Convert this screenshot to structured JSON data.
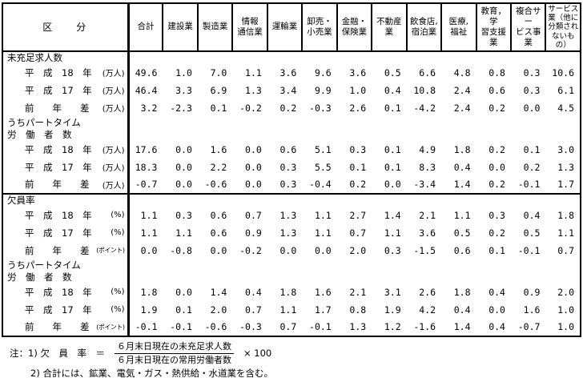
{
  "table": {
    "corner_label": "区　　分",
    "columns": [
      "合計",
      "建設業",
      "製造業",
      "情報\n通信業",
      "運輸業",
      "卸売・\n小売業",
      "金融・\n保険業",
      "不動産業",
      "飲食店,\n宿泊業",
      "医療,\n福祉",
      "教育，学\n習支援業",
      "複合サー\nビス事業",
      "サービス\n業（他に\n分類され\nないも\nの）"
    ],
    "sections": [
      {
        "title": "未充足求人数",
        "divider_above": false,
        "rows": [
          {
            "label": "平　成　18　年",
            "unit": "(万人)",
            "values": [
              "49.6",
              "1.0",
              "7.0",
              "1.1",
              "3.6",
              "9.6",
              "3.6",
              "0.5",
              "6.6",
              "4.8",
              "0.8",
              "0.3",
              "10.6"
            ]
          },
          {
            "label": "平　成　17　年",
            "unit": "(万人)",
            "values": [
              "46.4",
              "3.3",
              "6.9",
              "1.3",
              "3.4",
              "9.9",
              "1.0",
              "0.4",
              "10.8",
              "2.4",
              "0.6",
              "0.3",
              "6.1"
            ]
          },
          {
            "label": "前　　年　　差",
            "unit": "(万人)",
            "values": [
              "3.2",
              "-2.3",
              "0.1",
              "-0.2",
              "0.2",
              "-0.3",
              "2.6",
              "0.1",
              "-4.2",
              "2.4",
              "0.2",
              "0.0",
              "4.5"
            ]
          }
        ]
      },
      {
        "title": "うちパートタイム\n労　働　者　数",
        "divider_above": false,
        "rows": [
          {
            "label": "平　成　18　年",
            "unit": "(万人)",
            "values": [
              "17.6",
              "0.0",
              "1.6",
              "0.0",
              "0.6",
              "5.1",
              "0.3",
              "0.1",
              "4.9",
              "1.8",
              "0.2",
              "0.1",
              "3.0"
            ]
          },
          {
            "label": "平　成　17　年",
            "unit": "(万人)",
            "values": [
              "18.3",
              "0.0",
              "2.2",
              "0.0",
              "0.3",
              "5.5",
              "0.1",
              "0.1",
              "8.3",
              "0.4",
              "0.0",
              "0.2",
              "1.3"
            ]
          },
          {
            "label": "前　　年　　差",
            "unit": "(万人)",
            "values": [
              "-0.7",
              "0.0",
              "-0.6",
              "0.0",
              "0.3",
              "-0.4",
              "0.2",
              "0.0",
              "-3.4",
              "1.4",
              "0.2",
              "-0.1",
              "1.7"
            ]
          }
        ]
      },
      {
        "title": "欠員率",
        "divider_above": true,
        "rows": [
          {
            "label": "平　成　18　年",
            "unit": "(%)",
            "values": [
              "1.1",
              "0.3",
              "0.6",
              "0.7",
              "1.3",
              "1.1",
              "2.7",
              "1.4",
              "2.1",
              "1.1",
              "0.3",
              "0.4",
              "1.8"
            ]
          },
          {
            "label": "平　成　17　年",
            "unit": "(%)",
            "values": [
              "1.1",
              "1.1",
              "0.6",
              "0.9",
              "1.3",
              "1.1",
              "0.7",
              "1.1",
              "3.6",
              "0.5",
              "0.2",
              "0.5",
              "1.1"
            ]
          },
          {
            "label": "前　　年　　差",
            "unit": "(ポイント)",
            "values": [
              "0.0",
              "-0.8",
              "0.0",
              "-0.2",
              "0.0",
              "0.0",
              "2.0",
              "0.3",
              "-1.5",
              "0.6",
              "0.1",
              "-0.1",
              "0.7"
            ]
          }
        ]
      },
      {
        "title": "うちパートタイム\n労　働　者　数",
        "divider_above": false,
        "rows": [
          {
            "label": "平　成　18　年",
            "unit": "(%)",
            "values": [
              "1.8",
              "0.0",
              "1.4",
              "0.4",
              "1.8",
              "1.6",
              "2.1",
              "3.1",
              "2.6",
              "1.8",
              "0.4",
              "0.9",
              "2.0"
            ]
          },
          {
            "label": "平　成　17　年",
            "unit": "(%)",
            "values": [
              "1.9",
              "0.1",
              "2.0",
              "0.7",
              "1.1",
              "1.7",
              "0.8",
              "1.9",
              "4.2",
              "0.4",
              "0.0",
              "1.6",
              "1.0"
            ]
          },
          {
            "label": "前　　年　　差",
            "unit": "(ポイント)",
            "values": [
              "-0.1",
              "-0.1",
              "-0.6",
              "-0.3",
              "0.7",
              "-0.1",
              "1.3",
              "1.2",
              "-1.6",
              "1.4",
              "0.4",
              "-0.7",
              "1.0"
            ]
          }
        ]
      }
    ]
  },
  "notes": {
    "note1_lead": "注：1) 欠　員　率　＝",
    "fraction_numerator": "６月末日現在の未充足求人数",
    "fraction_denominator": "６月末日現在の常用労働者数",
    "note1_tail": "× 100",
    "note2": "2) 合計には、鉱業、電気・ガス・熱供給・水道業を含む。"
  }
}
